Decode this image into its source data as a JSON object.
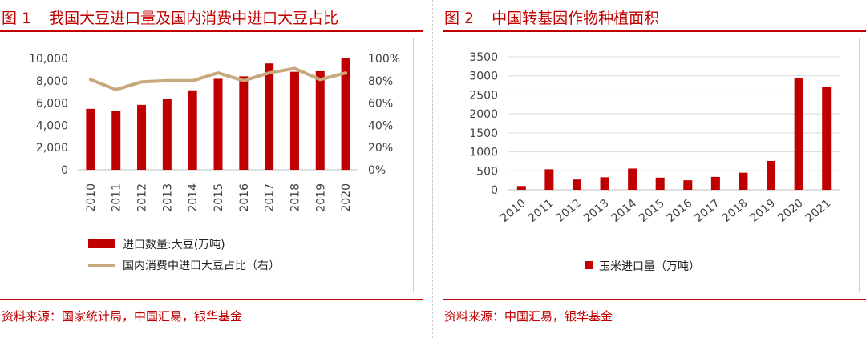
{
  "colors": {
    "accent": "#c00000",
    "bar": "#c00000",
    "line": "#c8a97e",
    "axis": "#bfbfbf",
    "tick": "#404040"
  },
  "left_panel": {
    "figure_no": "图 1",
    "title": "我国大豆进口量及国内消费中进口大豆占比",
    "source": "资料来源：国家统计局，中国汇易，银华基金"
  },
  "right_panel": {
    "figure_no": "图 2",
    "title": "中国转基因作物种植面积",
    "source": "资料来源：中国汇易，银华基金"
  },
  "chart_data": [
    {
      "type": "bar",
      "categories": [
        "2010",
        "2011",
        "2012",
        "2013",
        "2014",
        "2015",
        "2016",
        "2017",
        "2018",
        "2019",
        "2020"
      ],
      "y_ticks": [
        "0",
        "2,000",
        "4,000",
        "6,000",
        "8,000",
        "10,000"
      ],
      "y2_ticks": [
        "0%",
        "20%",
        "40%",
        "60%",
        "80%",
        "100%"
      ],
      "ylim": [
        0,
        10000
      ],
      "y2lim": [
        0,
        100
      ],
      "series": [
        {
          "name": "进口数量:大豆(万吨)",
          "kind": "bar",
          "axis": "left",
          "values": [
            5480,
            5264,
            5838,
            6338,
            7140,
            8169,
            8391,
            9553,
            8803,
            8851,
            10033
          ]
        },
        {
          "name": "国内消费中进口大豆占比（右）",
          "kind": "line",
          "axis": "right",
          "values": [
            81,
            72,
            79,
            80,
            80,
            87,
            80,
            87,
            91,
            81,
            87
          ]
        }
      ],
      "legend_position": "bottom",
      "grid": true
    },
    {
      "type": "bar",
      "categories": [
        "2010",
        "2011",
        "2012",
        "2013",
        "2014",
        "2015",
        "2016",
        "2017",
        "2018",
        "2019",
        "2020",
        "2021"
      ],
      "y_ticks": [
        "0",
        "500",
        "1000",
        "1500",
        "2000",
        "2500",
        "3000",
        "3500"
      ],
      "ylim": [
        0,
        3500
      ],
      "series": [
        {
          "name": "玉米进口量（万吨）",
          "kind": "bar",
          "values": [
            100,
            540,
            270,
            330,
            560,
            320,
            250,
            340,
            450,
            760,
            2950,
            2700
          ]
        }
      ],
      "legend_position": "bottom",
      "grid": true
    }
  ]
}
